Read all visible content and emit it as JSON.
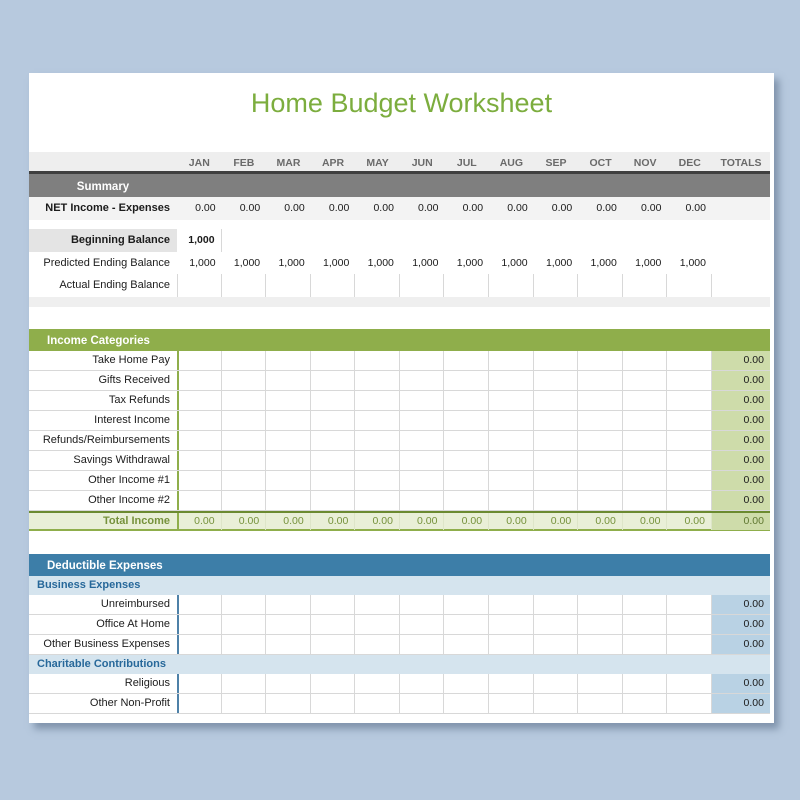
{
  "title": "Home Budget Worksheet",
  "header": {
    "months": [
      "JAN",
      "FEB",
      "MAR",
      "APR",
      "MAY",
      "JUN",
      "JUL",
      "AUG",
      "SEP",
      "OCT",
      "NOV",
      "DEC"
    ],
    "totals_label": "TOTALS"
  },
  "summary": {
    "band_label": "Summary",
    "net_row": {
      "label": "NET Income - Expenses",
      "values": [
        "0.00",
        "0.00",
        "0.00",
        "0.00",
        "0.00",
        "0.00",
        "0.00",
        "0.00",
        "0.00",
        "0.00",
        "0.00",
        "0.00"
      ],
      "total": ""
    },
    "beginning_balance": {
      "label": "Beginning Balance",
      "value": "1,000"
    },
    "predicted_row": {
      "label": "Predicted Ending Balance",
      "values": [
        "1,000",
        "1,000",
        "1,000",
        "1,000",
        "1,000",
        "1,000",
        "1,000",
        "1,000",
        "1,000",
        "1,000",
        "1,000",
        "1,000"
      ]
    },
    "actual_row": {
      "label": "Actual Ending Balance"
    }
  },
  "income": {
    "band_label": "Income Categories",
    "rows": [
      {
        "label": "Take Home Pay",
        "total": "0.00"
      },
      {
        "label": "Gifts Received",
        "total": "0.00"
      },
      {
        "label": "Tax Refunds",
        "total": "0.00"
      },
      {
        "label": "Interest Income",
        "total": "0.00"
      },
      {
        "label": "Refunds/Reimbursements",
        "total": "0.00"
      },
      {
        "label": "Savings Withdrawal",
        "total": "0.00"
      },
      {
        "label": "Other Income #1",
        "total": "0.00"
      },
      {
        "label": "Other Income #2",
        "total": "0.00"
      }
    ],
    "total_row": {
      "label": "Total Income",
      "values": [
        "0.00",
        "0.00",
        "0.00",
        "0.00",
        "0.00",
        "0.00",
        "0.00",
        "0.00",
        "0.00",
        "0.00",
        "0.00",
        "0.00"
      ],
      "total": "0.00"
    }
  },
  "expenses": {
    "band_label": "Deductible Expenses",
    "groups": [
      {
        "label": "Business Expenses",
        "rows": [
          {
            "label": "Unreimbursed",
            "total": "0.00"
          },
          {
            "label": "Office At Home",
            "total": "0.00"
          },
          {
            "label": "Other Business Expenses",
            "total": "0.00"
          }
        ]
      },
      {
        "label": "Charitable Contributions",
        "rows": [
          {
            "label": "Religious",
            "total": "0.00"
          },
          {
            "label": "Other Non-Profit",
            "total": "0.00"
          }
        ]
      }
    ]
  },
  "colors": {
    "page_bg": "#b7c9de",
    "title_text": "#7cad3e",
    "month_band_bg": "#eeeeee",
    "summary_band_bg": "#7f7f7f",
    "income_band_bg": "#8fae4b",
    "income_totals_bg": "#cedcaa",
    "income_total_row_bg": "#e9efd7",
    "income_total_text": "#76923c",
    "expense_band_bg": "#3d7ea8",
    "expense_sub_bg": "#d5e4ee",
    "expense_sub_text": "#27689a",
    "expense_totals_bg": "#b9d2e4",
    "grid_border": "#d8d8d8"
  }
}
